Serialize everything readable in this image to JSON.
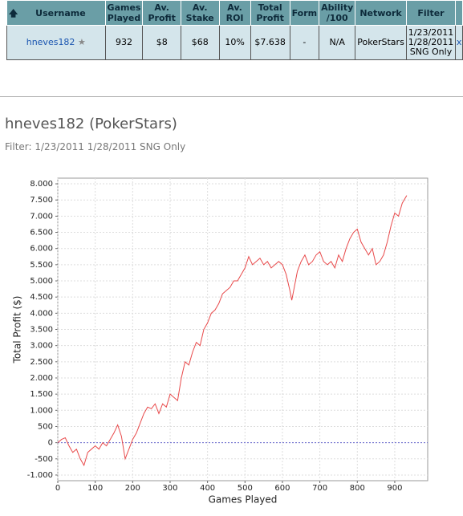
{
  "table": {
    "header": [
      "Username",
      "Games Played",
      "Av. Profit",
      "Av. Stake",
      "Av. ROI",
      "Total Profit",
      "Form",
      "Ability /100",
      "Network",
      "Filter"
    ],
    "row": [
      "hneves182",
      "932",
      "$8",
      "$68",
      "10%",
      "$7.638",
      "-",
      "N/A",
      "PokerStars",
      "1/23/2011 1/28/2011 SNG Only",
      "x"
    ]
  },
  "chart_data": {
    "type": "line",
    "title": "hneves182 (PokerStars)",
    "subtitle": "Filter: 1/23/2011 1/28/2011 SNG Only",
    "x_label": "Games Played",
    "y_label": "Total Profit ($)",
    "color": "#e8494a",
    "grid": true,
    "xlim": [
      0,
      988
    ],
    "xticks": [
      0,
      100,
      200,
      300,
      400,
      500,
      600,
      700,
      800,
      900
    ],
    "ylim": [
      -1175,
      8175
    ],
    "yticks": [
      {
        "value": 8000,
        "label": "8.000"
      },
      {
        "value": 7500,
        "label": "7.500"
      },
      {
        "value": 7000,
        "label": "7.000"
      },
      {
        "value": 6500,
        "label": "6.500"
      },
      {
        "value": 6000,
        "label": "6.000"
      },
      {
        "value": 5500,
        "label": "5.500"
      },
      {
        "value": 5000,
        "label": "5.000"
      },
      {
        "value": 4500,
        "label": "4.500"
      },
      {
        "value": 4000,
        "label": "4.000"
      },
      {
        "value": 3500,
        "label": "3.500"
      },
      {
        "value": 3000,
        "label": "3.000"
      },
      {
        "value": 2500,
        "label": "2.500"
      },
      {
        "value": 2000,
        "label": "2.000"
      },
      {
        "value": 1500,
        "label": "1.500"
      },
      {
        "value": 1000,
        "label": "1.000"
      },
      {
        "value": 500,
        "label": "500"
      },
      0,
      {
        "value": -500,
        "label": "-500"
      },
      {
        "value": -1000,
        "label": "-1.000"
      }
    ],
    "x": [
      0,
      10,
      20,
      30,
      40,
      50,
      60,
      70,
      80,
      90,
      100,
      110,
      120,
      130,
      140,
      150,
      160,
      170,
      180,
      190,
      200,
      210,
      220,
      230,
      240,
      250,
      260,
      270,
      280,
      290,
      300,
      310,
      320,
      330,
      340,
      350,
      360,
      370,
      380,
      390,
      400,
      410,
      420,
      430,
      440,
      450,
      460,
      470,
      480,
      490,
      500,
      510,
      520,
      530,
      540,
      550,
      560,
      570,
      580,
      590,
      600,
      610,
      620,
      625,
      640,
      650,
      660,
      670,
      680,
      690,
      700,
      710,
      720,
      730,
      740,
      750,
      760,
      770,
      780,
      790,
      800,
      810,
      820,
      830,
      840,
      850,
      860,
      870,
      880,
      890,
      900,
      910,
      920,
      932
    ],
    "values": [
      0,
      100,
      150,
      -100,
      -300,
      -200,
      -500,
      -700,
      -300,
      -200,
      -100,
      -200,
      0,
      -100,
      100,
      300,
      550,
      200,
      -500,
      -200,
      100,
      300,
      600,
      900,
      1100,
      1050,
      1200,
      900,
      1200,
      1100,
      1500,
      1400,
      1300,
      2000,
      2500,
      2400,
      2800,
      3100,
      3000,
      3500,
      3700,
      4000,
      4100,
      4300,
      4600,
      4700,
      4800,
      5000,
      5000,
      5200,
      5400,
      5750,
      5500,
      5600,
      5700,
      5500,
      5600,
      5400,
      5500,
      5600,
      5500,
      5200,
      4700,
      4400,
      5300,
      5600,
      5800,
      5500,
      5600,
      5800,
      5900,
      5600,
      5500,
      5600,
      5400,
      5800,
      5600,
      6000,
      6300,
      6500,
      6600,
      6200,
      6000,
      5800,
      6000,
      5500,
      5600,
      5800,
      6200,
      6700,
      7100,
      7000,
      7400,
      7638
    ]
  }
}
